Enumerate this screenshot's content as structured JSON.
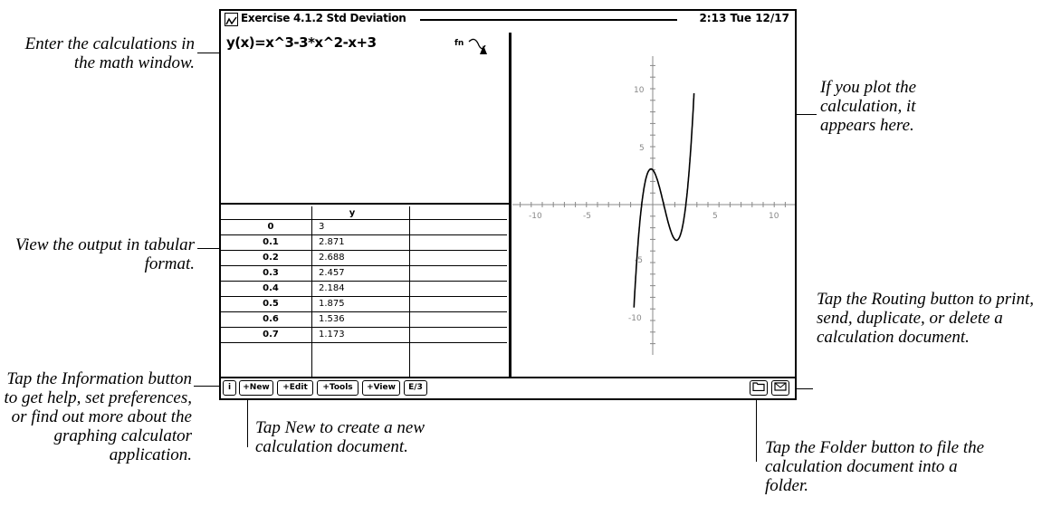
{
  "window": {
    "title": "Exercise 4.1.2 Std Deviation",
    "clock": "2:13 Tue 12/17"
  },
  "math": {
    "expression": "y(x)=x^3-3*x^2-x+3",
    "icon": "graph-func-icon"
  },
  "table": {
    "header": [
      "",
      "y"
    ],
    "rows": [
      {
        "x": "0",
        "y": "3"
      },
      {
        "x": "0.1",
        "y": "2.871"
      },
      {
        "x": "0.2",
        "y": "2.688"
      },
      {
        "x": "0.3",
        "y": "2.457"
      },
      {
        "x": "0.4",
        "y": "2.184"
      },
      {
        "x": "0.5",
        "y": "1.875"
      },
      {
        "x": "0.6",
        "y": "1.536"
      },
      {
        "x": "0.7",
        "y": "1.173"
      }
    ]
  },
  "graph": {
    "x_ticks": [
      "-10",
      "-5",
      "5",
      "10"
    ],
    "y_ticks": [
      "10",
      "5",
      "-5",
      "-10"
    ]
  },
  "toolbar": {
    "info": "i",
    "new": "+New",
    "edit": "+Edit",
    "tools": "+Tools",
    "view": "+View",
    "page": "E/3"
  },
  "callouts": {
    "math": "Enter the calculations in the math window.",
    "table": "View the output in tabular format.",
    "info": "Tap the Information button to get help, set preferences, or find out more about the graphing calculator application.",
    "new": "Tap New to create a new calculation document.",
    "plot": "If you plot the calculation, it appears here.",
    "routing": "Tap the Routing button to print, send, duplicate, or delete a calculation document.",
    "folder": "Tap the Folder button to file the calculation document into a folder."
  }
}
